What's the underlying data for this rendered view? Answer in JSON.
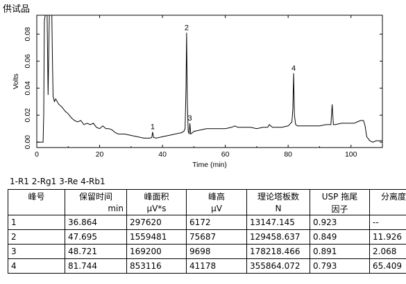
{
  "sample_label": "供试品",
  "chart_data": {
    "type": "line",
    "xlabel": "Time (min)",
    "ylabel": "Volts",
    "xlim": [
      0,
      110
    ],
    "ylim": [
      -0.004,
      0.094
    ],
    "x_ticks": [
      "0",
      "20",
      "40",
      "60",
      "80",
      "100"
    ],
    "x_tick_values": [
      0,
      20,
      40,
      60,
      80,
      100
    ],
    "y_ticks": [
      "0.00",
      "0.02",
      "0.04",
      "0.06",
      "0.08"
    ],
    "y_tick_values": [
      0,
      0.02,
      0.04,
      0.06,
      0.08
    ],
    "series": [
      {
        "x": [
          0,
          2.0,
          2.2,
          2.4,
          2.7,
          3.0,
          3.3,
          3.6,
          4.0,
          4.4,
          4.8,
          5.0,
          5.2,
          5.6,
          6,
          7,
          8,
          9,
          10,
          11,
          12,
          13,
          14,
          15,
          16,
          17,
          18,
          19,
          20,
          21,
          22,
          23,
          24,
          25,
          26,
          28,
          30,
          32,
          34,
          35,
          36,
          36.6,
          36.864,
          37.2,
          38,
          40,
          42,
          44,
          46,
          46.8,
          47.2,
          47.5,
          47.695,
          47.9,
          48.2,
          48.5,
          48.721,
          49.0,
          49.5,
          50,
          52,
          54,
          56,
          58,
          60,
          62,
          63,
          64,
          66,
          68,
          70,
          72,
          73.5,
          74,
          75,
          78,
          80,
          81.2,
          81.5,
          81.744,
          82.0,
          82.4,
          83,
          86,
          88,
          90,
          92,
          93.6,
          94.0,
          94.4,
          95,
          97,
          99,
          101,
          102,
          103,
          104,
          104.5,
          105,
          106,
          107,
          108,
          110
        ],
        "y": [
          0.0,
          0.0,
          0.02,
          0.09,
          0.094,
          0.094,
          0.094,
          0.035,
          0.094,
          0.094,
          0.094,
          0.06,
          0.034,
          0.03,
          0.032,
          0.028,
          0.026,
          0.023,
          0.021,
          0.018,
          0.016,
          0.015,
          0.016,
          0.013,
          0.014,
          0.013,
          0.014,
          0.011,
          0.01,
          0.012,
          0.01,
          0.01,
          0.009,
          0.007,
          0.006,
          0.006,
          0.005,
          0.004,
          0.003,
          0.003,
          0.003,
          0.0034,
          0.0075,
          0.0034,
          0.003,
          0.004,
          0.005,
          0.006,
          0.007,
          0.008,
          0.01,
          0.04,
          0.081,
          0.03,
          0.008,
          0.006,
          0.014,
          0.006,
          0.007,
          0.008,
          0.009,
          0.01,
          0.01,
          0.01,
          0.01,
          0.011,
          0.012,
          0.011,
          0.011,
          0.011,
          0.01,
          0.011,
          0.011,
          0.013,
          0.011,
          0.011,
          0.012,
          0.015,
          0.025,
          0.051,
          0.02,
          0.013,
          0.012,
          0.012,
          0.012,
          0.012,
          0.013,
          0.013,
          0.028,
          0.013,
          0.013,
          0.014,
          0.014,
          0.014,
          0.015,
          0.016,
          0.016,
          0.012,
          0.004,
          0.001,
          0.0,
          0.001,
          0.001
        ]
      }
    ],
    "peak_labels": [
      {
        "text": "1",
        "x": 36.864,
        "y": 0.0075
      },
      {
        "text": "2",
        "x": 47.695,
        "y": 0.081
      },
      {
        "text": "3",
        "x": 48.721,
        "y": 0.014
      },
      {
        "text": "4",
        "x": 81.744,
        "y": 0.051
      }
    ],
    "legend": "1-R1   2-Rg1   3-Re   4-Rb1",
    "table": {
      "headers": [
        {
          "name": "峰号",
          "unit": ""
        },
        {
          "name": "保留时间",
          "unit": "min"
        },
        {
          "name": "峰面积",
          "unit": "μV*s"
        },
        {
          "name": "峰高",
          "unit": "μV"
        },
        {
          "name": "理论塔板数",
          "unit": "N"
        },
        {
          "name": "USP 拖尾",
          "unit": "因子"
        },
        {
          "name": "分离度",
          "unit": ""
        }
      ],
      "rows": [
        [
          "1",
          "36.864",
          "297620",
          "6172",
          "13147.145",
          "0.923",
          "--"
        ],
        [
          "2",
          "47.695",
          "1559481",
          "75687",
          "129458.637",
          "0.849",
          "11.926"
        ],
        [
          "3",
          "48.721",
          "169200",
          "9698",
          "178218.466",
          "0.891",
          "2.068"
        ],
        [
          "4",
          "81.744",
          "853116",
          "41178",
          "355864.072",
          "0.793",
          "65.409"
        ]
      ]
    },
    "line_color": "#000000"
  }
}
